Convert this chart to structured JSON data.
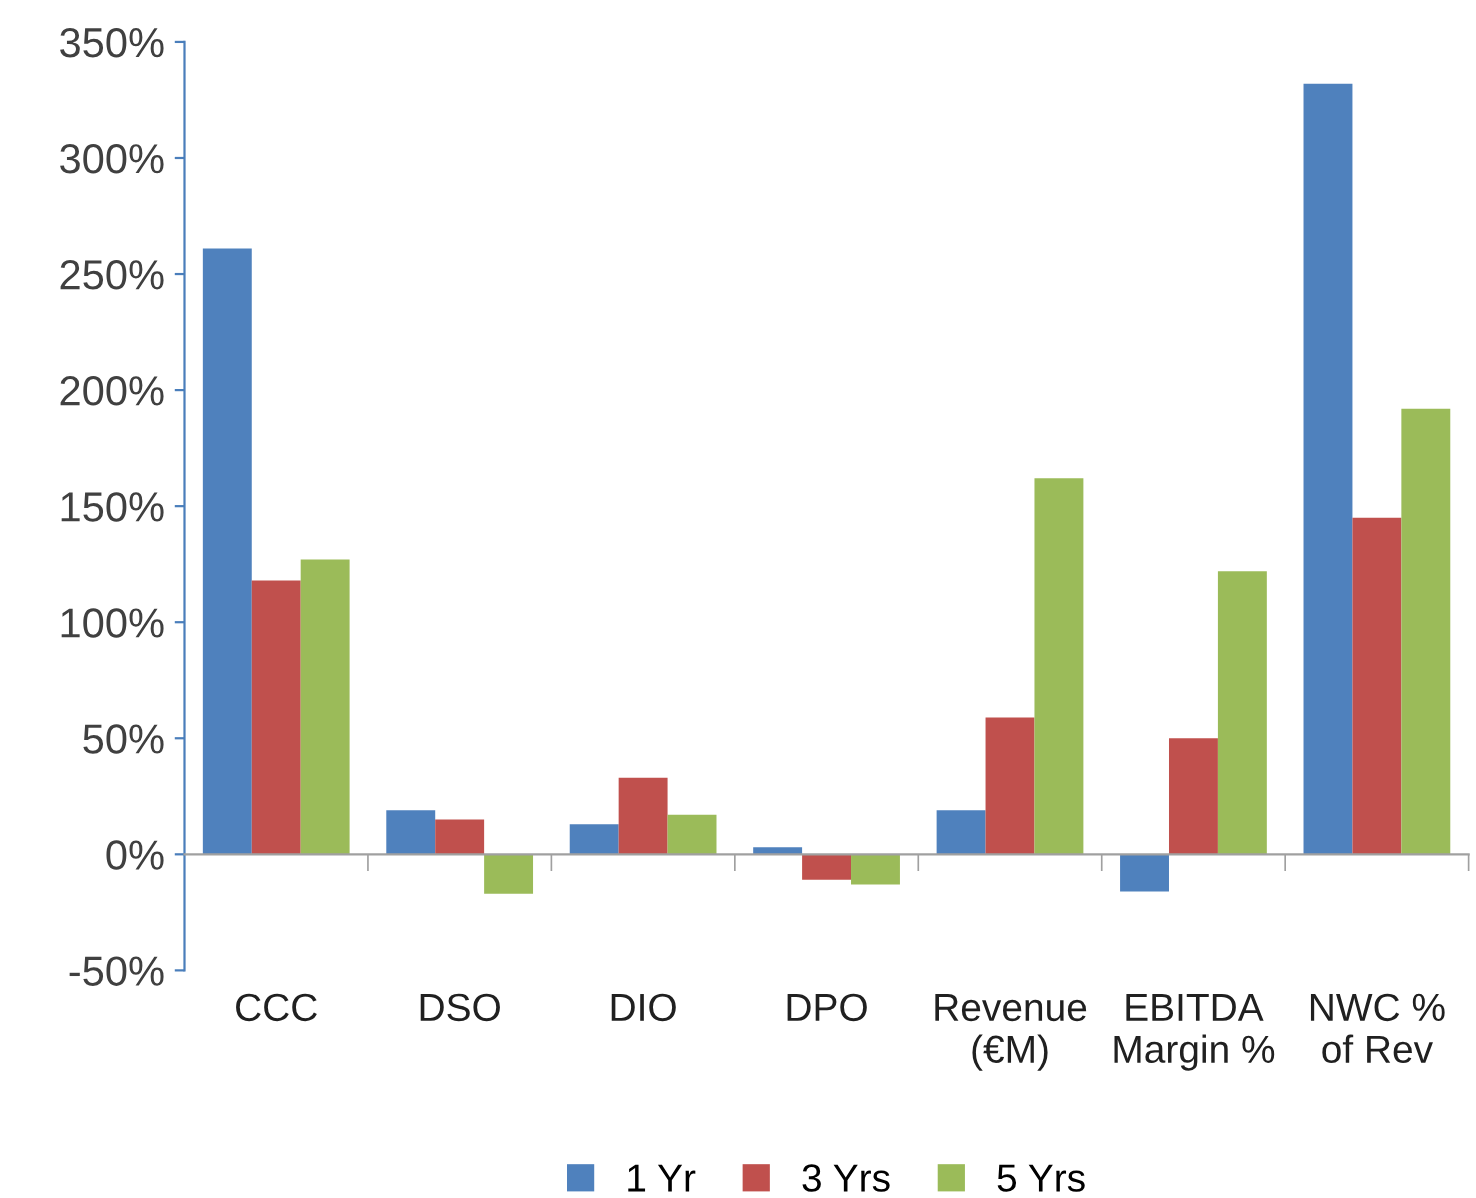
{
  "chart_data": {
    "type": "bar",
    "categories": [
      "CCC",
      "DSO",
      "DIO",
      "DPO",
      "Revenue\n(€M)",
      "EBITDA\nMargin %",
      "NWC %\nof Rev"
    ],
    "series": [
      {
        "name": "1 Yr",
        "color": "#4f81bd",
        "values": [
          261,
          19,
          13,
          3,
          19,
          -16,
          332
        ]
      },
      {
        "name": "3 Yrs",
        "color": "#c0504d",
        "values": [
          118,
          15,
          33,
          -11,
          59,
          50,
          145
        ]
      },
      {
        "name": "5 Yrs",
        "color": "#9bbb59",
        "values": [
          127,
          -17,
          17,
          -13,
          162,
          122,
          192
        ]
      }
    ],
    "ylim": [
      -50,
      350
    ],
    "yticks": [
      {
        "value": -50,
        "label": "-50%"
      },
      {
        "value": 0,
        "label": "0%"
      },
      {
        "value": 50,
        "label": "50%"
      },
      {
        "value": 100,
        "label": "100%"
      },
      {
        "value": 150,
        "label": "150%"
      },
      {
        "value": 200,
        "label": "200%"
      },
      {
        "value": 250,
        "label": "250%"
      },
      {
        "value": 300,
        "label": "300%"
      },
      {
        "value": 350,
        "label": "350%"
      }
    ],
    "legend": "bottom"
  }
}
